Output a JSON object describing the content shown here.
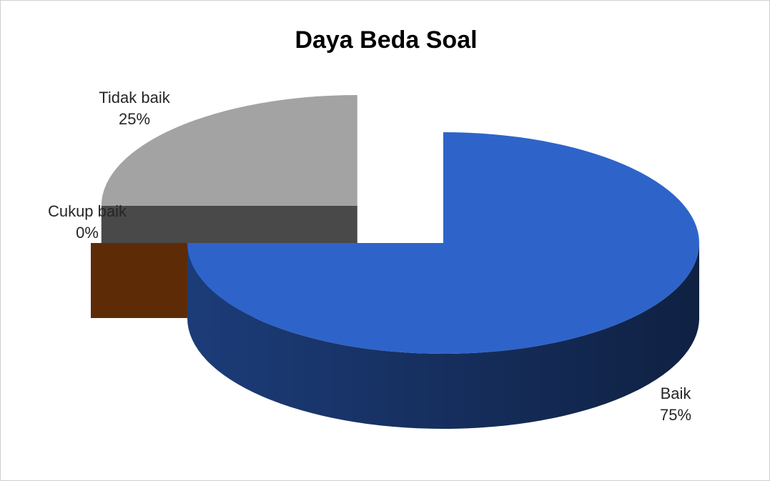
{
  "chart_data": {
    "type": "pie3d",
    "title": "Daya Beda Soal",
    "categories": [
      "Baik",
      "Cukup baik",
      "Tidak baik"
    ],
    "values": [
      75,
      0,
      25
    ],
    "value_labels": [
      "75%",
      "0%",
      "25%"
    ],
    "colors": [
      "#2e64c9",
      "#5e2b07",
      "#a3a3a3"
    ]
  }
}
